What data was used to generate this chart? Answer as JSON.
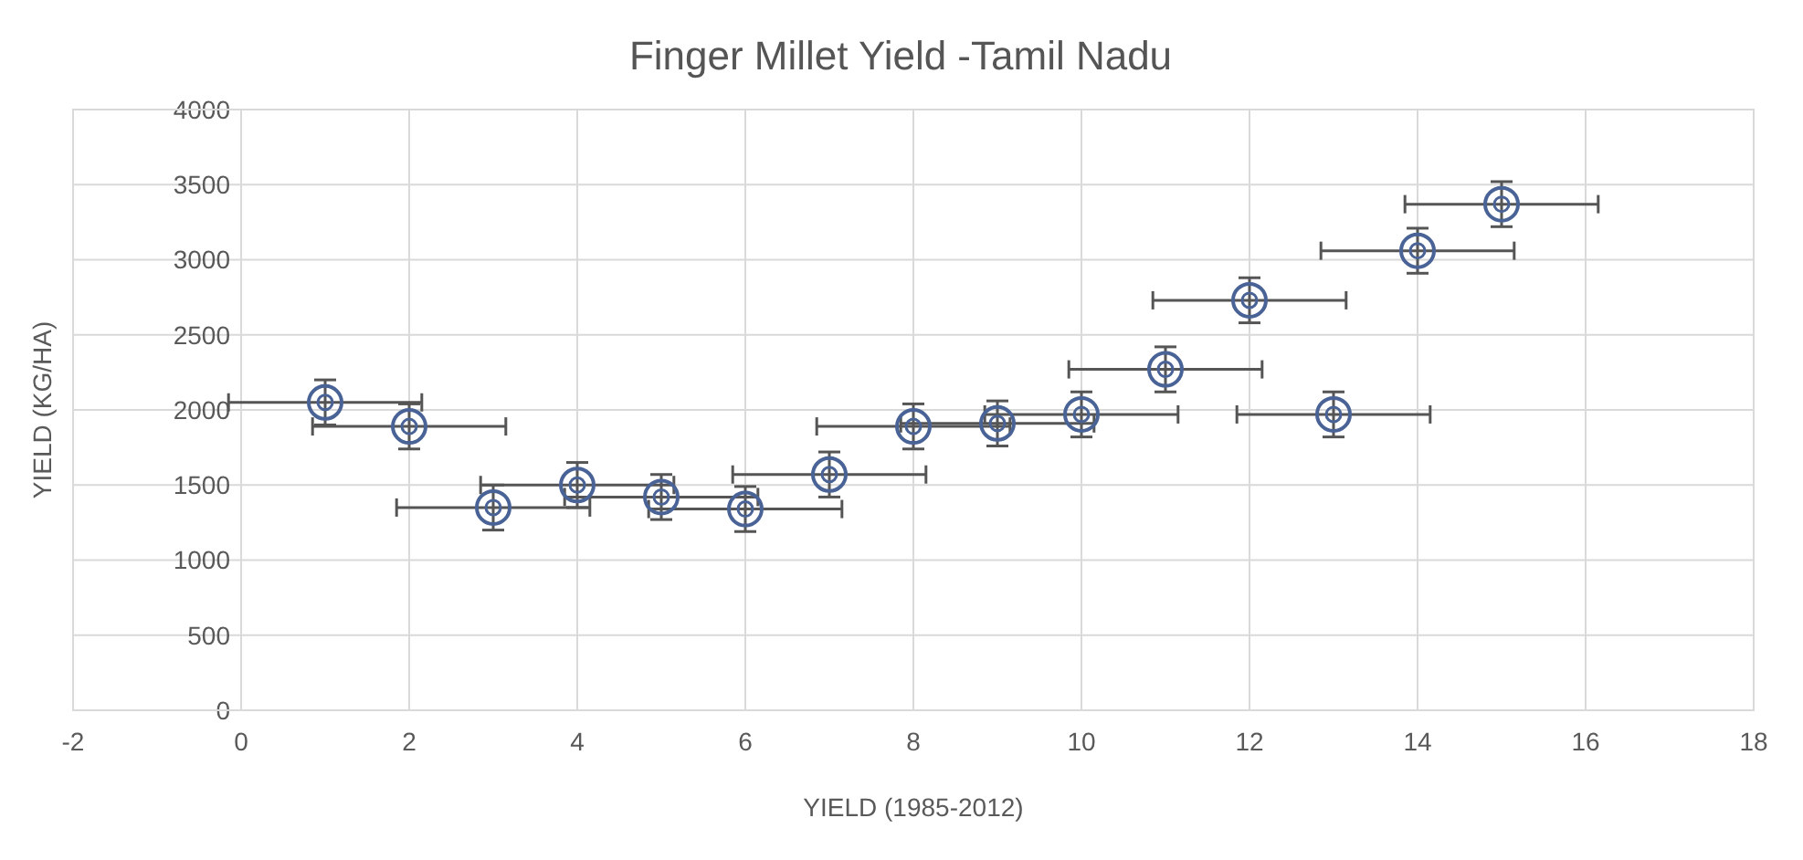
{
  "chart_data": {
    "type": "scatter",
    "title": "Finger Millet Yield -Tamil Nadu",
    "xlabel": "YIELD (1985-2012)",
    "ylabel": "YIELD (KG/HA)",
    "x": [
      1,
      2,
      3,
      4,
      5,
      6,
      7,
      8,
      9,
      10,
      11,
      12,
      13,
      14,
      15
    ],
    "values": [
      2050,
      1890,
      1350,
      1500,
      1420,
      1340,
      1570,
      1890,
      1910,
      1970,
      2270,
      2730,
      1970,
      3060,
      3370
    ],
    "errors": [
      150,
      150,
      150,
      150,
      150,
      150,
      150,
      150,
      150,
      150,
      150,
      150,
      150,
      150,
      150
    ],
    "xerrors": [
      1.15,
      1.15,
      1.15,
      1.15,
      1.15,
      1.15,
      1.15,
      1.15,
      1.15,
      1.15,
      1.15,
      1.15,
      1.15,
      1.15,
      1.15
    ],
    "color": "#4a6397",
    "xlim": [
      -2,
      18
    ],
    "xticks": [
      -2,
      0,
      2,
      4,
      6,
      8,
      10,
      12,
      14,
      16,
      18
    ],
    "ylim": [
      0,
      4000
    ],
    "yticks": [
      0,
      500,
      1000,
      1500,
      2000,
      2500,
      3000,
      3500,
      4000
    ],
    "grid": true,
    "marker": "circle"
  }
}
